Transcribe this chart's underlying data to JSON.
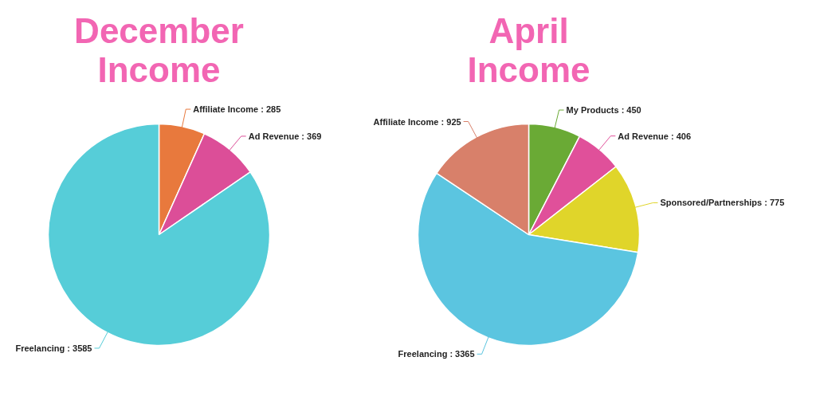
{
  "chart_data": [
    {
      "type": "pie",
      "title": "December Income",
      "categories": [
        "Affiliate Income",
        "Ad Revenue",
        "Freelancing"
      ],
      "values": [
        285,
        369,
        3585
      ],
      "value_labels": [
        ": 285",
        ": 369",
        ": 3585"
      ],
      "colors": [
        "#e8793d",
        "#dc4e98",
        "#56cdd8"
      ]
    },
    {
      "type": "pie",
      "title": "April Income",
      "categories": [
        "My Products",
        "Ad Revenue",
        "Sponsored/Partnerships",
        "Freelancing",
        "Affiliate Income"
      ],
      "values": [
        450,
        406,
        775,
        3365,
        925
      ],
      "value_labels": [
        ": 450",
        ": 406",
        ": 775",
        ": 3365",
        ": 925"
      ],
      "colors": [
        "#6aaa35",
        "#e0509a",
        "#e0d52a",
        "#5bc5e0",
        "#d8806a"
      ]
    }
  ]
}
